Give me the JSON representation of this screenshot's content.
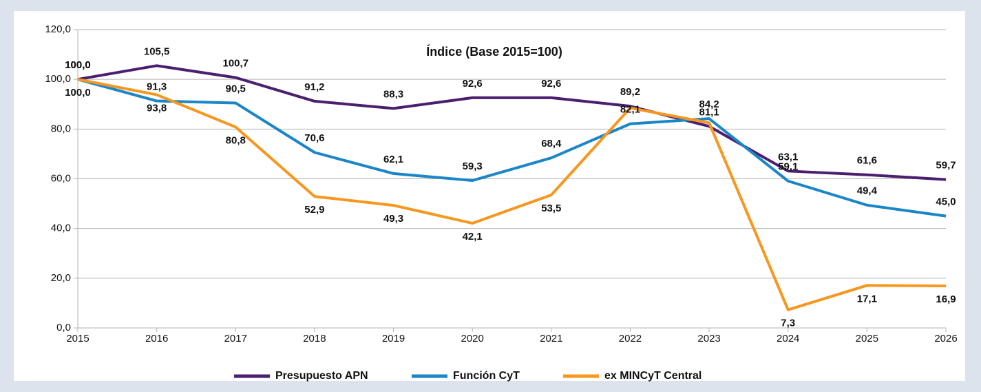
{
  "chart_data": {
    "type": "line",
    "title": "Índice (Base 2015=100)",
    "x": [
      2015,
      2016,
      2017,
      2018,
      2019,
      2020,
      2021,
      2022,
      2023,
      2024,
      2025,
      2026
    ],
    "xlim": [
      2015,
      2026
    ],
    "xticks": [
      2015,
      2016,
      2017,
      2018,
      2019,
      2020,
      2021,
      2022,
      2023,
      2024,
      2025,
      2026
    ],
    "ylim": [
      0,
      120
    ],
    "yticks": [
      {
        "value": 0,
        "label": "0,0"
      },
      {
        "value": 20,
        "label": "20,0"
      },
      {
        "value": 40,
        "label": "40,0"
      },
      {
        "value": 60,
        "label": "60,0"
      },
      {
        "value": 80,
        "label": "80,0"
      },
      {
        "value": 100,
        "label": "100,0"
      },
      {
        "value": 120,
        "label": "120,0"
      }
    ],
    "grid": true,
    "series": [
      {
        "name": "Presupuesto APN",
        "color": "#4b1f6f",
        "values": [
          100,
          105.5,
          100.7,
          91.2,
          88.3,
          92.6,
          92.6,
          89.2,
          81.1,
          63.1,
          61.6,
          59.7
        ],
        "value_labels": [
          "100,0",
          "105,5",
          "100,7",
          "91,2",
          "88,3",
          "92,6",
          "92,6",
          "89,2",
          "81,1",
          "63,1",
          "61,6",
          "59,7"
        ]
      },
      {
        "name": "Función CyT",
        "color": "#1a86c8",
        "values": [
          100,
          91.3,
          90.5,
          70.6,
          62.1,
          59.3,
          68.4,
          82.1,
          84.2,
          59.1,
          49.4,
          45
        ],
        "value_labels": [
          "100,0",
          "91,3",
          "90,5",
          "70,6",
          "62,1",
          "59,3",
          "68,4",
          "82,1",
          "84,2",
          "59,1",
          "49,4",
          "45,0"
        ]
      },
      {
        "name": "ex MINCyT Central",
        "color": "#f7971e",
        "values": [
          100,
          93.8,
          80.8,
          52.9,
          49.3,
          42.1,
          53.5,
          88.5,
          82.5,
          7.3,
          17.1,
          16.9
        ],
        "value_labels": [
          "100,0",
          "93,8",
          "80,8",
          "52,9",
          "49,3",
          "42,1",
          "53,5",
          null,
          null,
          "7,3",
          "17,1",
          "16,9"
        ]
      }
    ]
  }
}
